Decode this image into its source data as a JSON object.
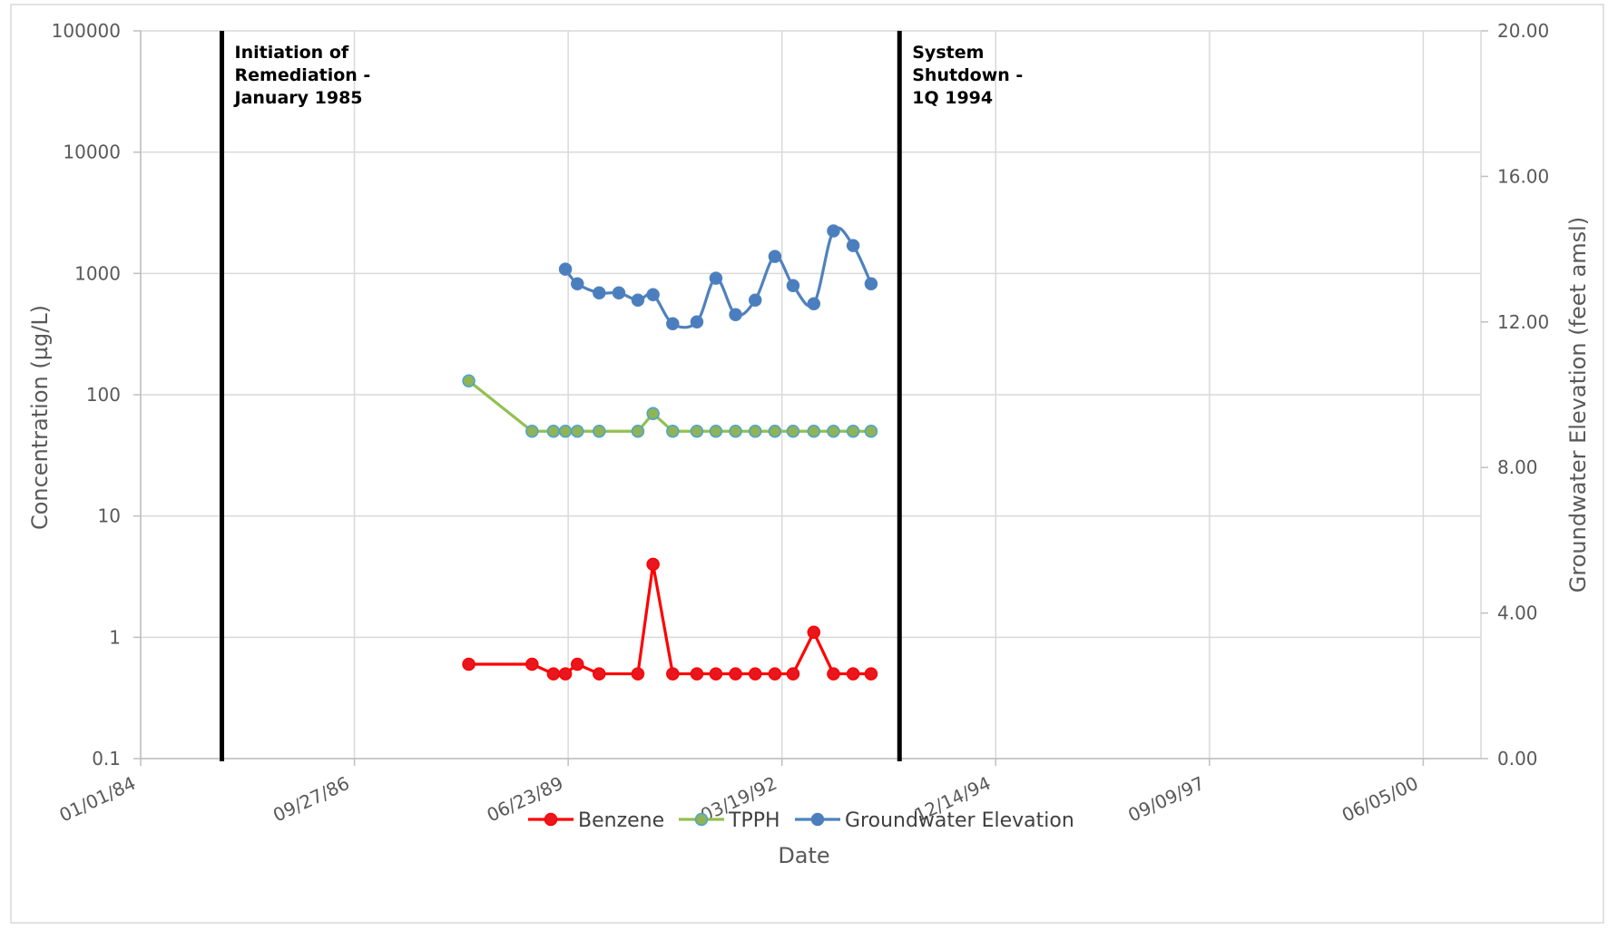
{
  "chart_data": {
    "type": "line",
    "title": "",
    "xlabel": "Date",
    "ylabel": "Concentration (µg/L)",
    "y2label": "Groundwater Elevation (feet amsl)",
    "x_ticks": [
      "01/01/84",
      "09/27/86",
      "06/23/89",
      "03/19/92",
      "12/14/94",
      "09/09/97",
      "06/05/00"
    ],
    "y_ticks": [
      "0.1",
      "1",
      "10",
      "100",
      "1000",
      "10000",
      "100000"
    ],
    "y_scale": "log",
    "ylim": [
      0.1,
      100000
    ],
    "y2_ticks": [
      "0.00",
      "4.00",
      "8.00",
      "12.00",
      "16.00",
      "20.00"
    ],
    "y2lim": [
      0,
      20
    ],
    "xlim": [
      "1984-01-01",
      "2001-03-02"
    ],
    "grid": "vertical",
    "legend_position": "bottom",
    "colors": {
      "benzene": "#ff0000",
      "benzene_marker": "#e8161e",
      "tpph": "#92c050",
      "tpph_marker_fill": "#8fb356",
      "tpph_marker_edge": "#4aa3d8",
      "gw": "#4f81bd",
      "gw_marker": "#4a7ebf",
      "marker_line": "#000000"
    },
    "annotations": [
      {
        "date": "1985-01-15",
        "lines": [
          "Initiation of",
          "Remediation -",
          "January 1985"
        ]
      },
      {
        "date": "1993-09-20",
        "lines": [
          "System",
          "Shutdown -",
          "1Q 1994"
        ]
      }
    ],
    "series": [
      {
        "name": "Benzene",
        "axis": "left",
        "x": [
          "1988-03-15",
          "1989-01-05",
          "1989-04-15",
          "1989-06-10",
          "1989-08-05",
          "1989-11-15",
          "1990-05-15",
          "1990-07-25",
          "1990-10-25",
          "1991-02-15",
          "1991-05-15",
          "1991-08-15",
          "1991-11-15",
          "1992-02-15",
          "1992-05-10",
          "1992-08-15",
          "1992-11-15",
          "1993-02-15",
          "1993-05-10"
        ],
        "values": [
          0.6,
          0.6,
          0.5,
          0.5,
          0.6,
          0.5,
          0.5,
          4,
          0.5,
          0.5,
          0.5,
          0.5,
          0.5,
          0.5,
          0.5,
          1.1,
          0.5,
          0.5,
          0.5
        ]
      },
      {
        "name": "TPPH",
        "axis": "left",
        "x": [
          "1988-03-15",
          "1989-01-05",
          "1989-04-15",
          "1989-06-10",
          "1989-08-05",
          "1989-11-15",
          "1990-05-15",
          "1990-07-25",
          "1990-10-25",
          "1991-02-15",
          "1991-05-15",
          "1991-08-15",
          "1991-11-15",
          "1992-02-15",
          "1992-05-10",
          "1992-08-15",
          "1992-11-15",
          "1993-02-15",
          "1993-05-10"
        ],
        "values": [
          130,
          50,
          50,
          50,
          50,
          50,
          50,
          70,
          50,
          50,
          50,
          50,
          50,
          50,
          50,
          50,
          50,
          50,
          50
        ]
      },
      {
        "name": "Groundwater Elevation",
        "axis": "right",
        "smooth": true,
        "x": [
          "1989-06-10",
          "1989-08-05",
          "1989-11-15",
          "1990-02-15",
          "1990-05-15",
          "1990-07-25",
          "1990-10-25",
          "1991-02-15",
          "1991-05-15",
          "1991-08-15",
          "1991-11-15",
          "1992-02-15",
          "1992-05-10",
          "1992-08-15",
          "1992-11-15",
          "1993-02-15",
          "1993-05-10"
        ],
        "values": [
          13.45,
          13.05,
          12.8,
          12.8,
          12.6,
          12.75,
          11.95,
          12.0,
          13.2,
          12.2,
          12.6,
          13.8,
          13.0,
          12.5,
          14.5,
          14.1,
          13.05
        ]
      }
    ]
  }
}
